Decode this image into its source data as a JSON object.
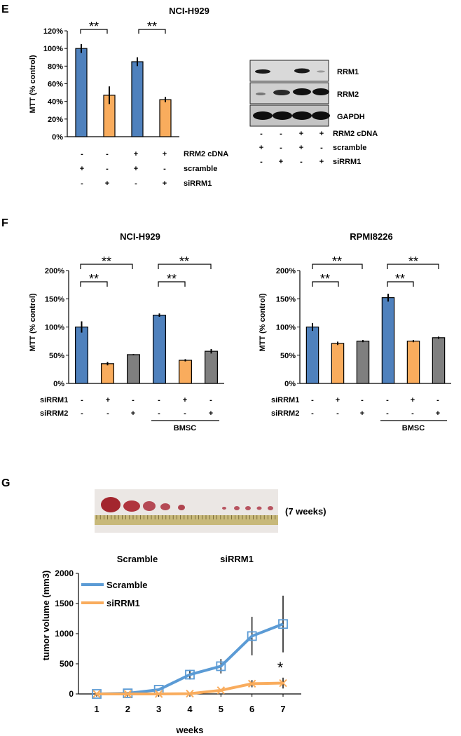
{
  "figure": {
    "panel_e": {
      "letter": "E",
      "title": "NCI-H929",
      "significance": [
        "**",
        "**"
      ],
      "row_labels": [
        "RRM2 cDNA",
        "scramble",
        "siRRM1"
      ],
      "rows": [
        [
          "-",
          "-",
          "+",
          "+"
        ],
        [
          "+",
          "-",
          "+",
          "-"
        ],
        [
          "-",
          "+",
          "-",
          "+"
        ]
      ],
      "blot": {
        "bands": [
          "RRM1",
          "RRM2",
          "GAPDH"
        ],
        "row_labels": [
          "RRM2 cDNA",
          "scramble",
          "siRRM1"
        ],
        "rows": [
          [
            "-",
            "-",
            "+",
            "+"
          ],
          [
            "+",
            "-",
            "+",
            "-"
          ],
          [
            "-",
            "+",
            "-",
            "+"
          ]
        ]
      }
    },
    "panel_f": {
      "letter": "F",
      "left": {
        "title": "NCI-H929",
        "row_labels": [
          "siRRM1",
          "siRRM2"
        ],
        "rows": [
          [
            "-",
            "+",
            "-",
            "-",
            "+",
            "-"
          ],
          [
            "-",
            "-",
            "+",
            "-",
            "-",
            "+"
          ]
        ],
        "group_label": "BMSC",
        "significance": [
          "**",
          "**",
          "**",
          "**"
        ]
      },
      "right": {
        "title": "RPMI8226",
        "row_labels": [
          "siRRM1",
          "siRRM2"
        ],
        "rows": [
          [
            "-",
            "+",
            "-",
            "-",
            "+",
            "-"
          ],
          [
            "-",
            "-",
            "+",
            "-",
            "-",
            "+"
          ]
        ],
        "group_label": "BMSC",
        "significance": [
          "**",
          "**",
          "**",
          "**"
        ]
      }
    },
    "panel_g": {
      "letter": "G",
      "photo_caption": "(7 weeks)",
      "group_labels": [
        "Scramble",
        "siRRM1"
      ],
      "significance": "*"
    }
  },
  "chart_data": [
    {
      "type": "bar",
      "panel": "E",
      "title": "NCI-H929",
      "ylabel": "MTT (% control)",
      "ylim": [
        0,
        120
      ],
      "yticks": [
        "0%",
        "20%",
        "40%",
        "60%",
        "80%",
        "100%",
        "120%"
      ],
      "values": [
        100,
        47,
        85,
        42
      ],
      "errors": [
        5,
        10,
        5,
        3
      ],
      "colors": [
        "#4f81bd",
        "#f9ac5d",
        "#4f81bd",
        "#f9ac5d"
      ]
    },
    {
      "type": "bar",
      "panel": "F-left",
      "title": "NCI-H929",
      "ylabel": "MTT (% control)",
      "ylim": [
        0,
        200
      ],
      "yticks": [
        "0%",
        "50%",
        "100%",
        "150%",
        "200%"
      ],
      "values": [
        100,
        35,
        51,
        121,
        41,
        57
      ],
      "errors": [
        10,
        3,
        1,
        3,
        2,
        4
      ],
      "colors": [
        "#4f81bd",
        "#f9ac5d",
        "#7f7f7f",
        "#4f81bd",
        "#f9ac5d",
        "#7f7f7f"
      ]
    },
    {
      "type": "bar",
      "panel": "F-right",
      "title": "RPMI8226",
      "ylabel": "MTT (% control)",
      "ylim": [
        0,
        200
      ],
      "yticks": [
        "0%",
        "50%",
        "100%",
        "150%",
        "200%"
      ],
      "values": [
        100,
        71,
        75,
        152,
        75,
        81
      ],
      "errors": [
        7,
        3,
        2,
        7,
        2,
        2
      ],
      "colors": [
        "#4f81bd",
        "#f9ac5d",
        "#7f7f7f",
        "#4f81bd",
        "#f9ac5d",
        "#7f7f7f"
      ]
    },
    {
      "type": "line",
      "panel": "G",
      "xlabel": "weeks",
      "ylabel": "tumor volume (mm3)",
      "ylim": [
        0,
        2000
      ],
      "yticks": [
        "0",
        "500",
        "1000",
        "1500",
        "2000"
      ],
      "x": [
        1,
        2,
        3,
        4,
        5,
        6,
        7
      ],
      "xticks": [
        "1",
        "2",
        "3",
        "4",
        "5",
        "6",
        "7"
      ],
      "series": [
        {
          "name": "Scramble",
          "color": "#5b9bd5",
          "marker": "square",
          "values": [
            0,
            10,
            70,
            320,
            460,
            960,
            1160
          ],
          "errors": [
            0,
            0,
            0,
            80,
            120,
            320,
            470
          ]
        },
        {
          "name": "siRRM1",
          "color": "#f9ac5d",
          "marker": "x",
          "values": [
            0,
            0,
            0,
            5,
            60,
            170,
            180
          ],
          "errors": [
            0,
            0,
            0,
            0,
            0,
            60,
            90
          ]
        }
      ]
    }
  ]
}
